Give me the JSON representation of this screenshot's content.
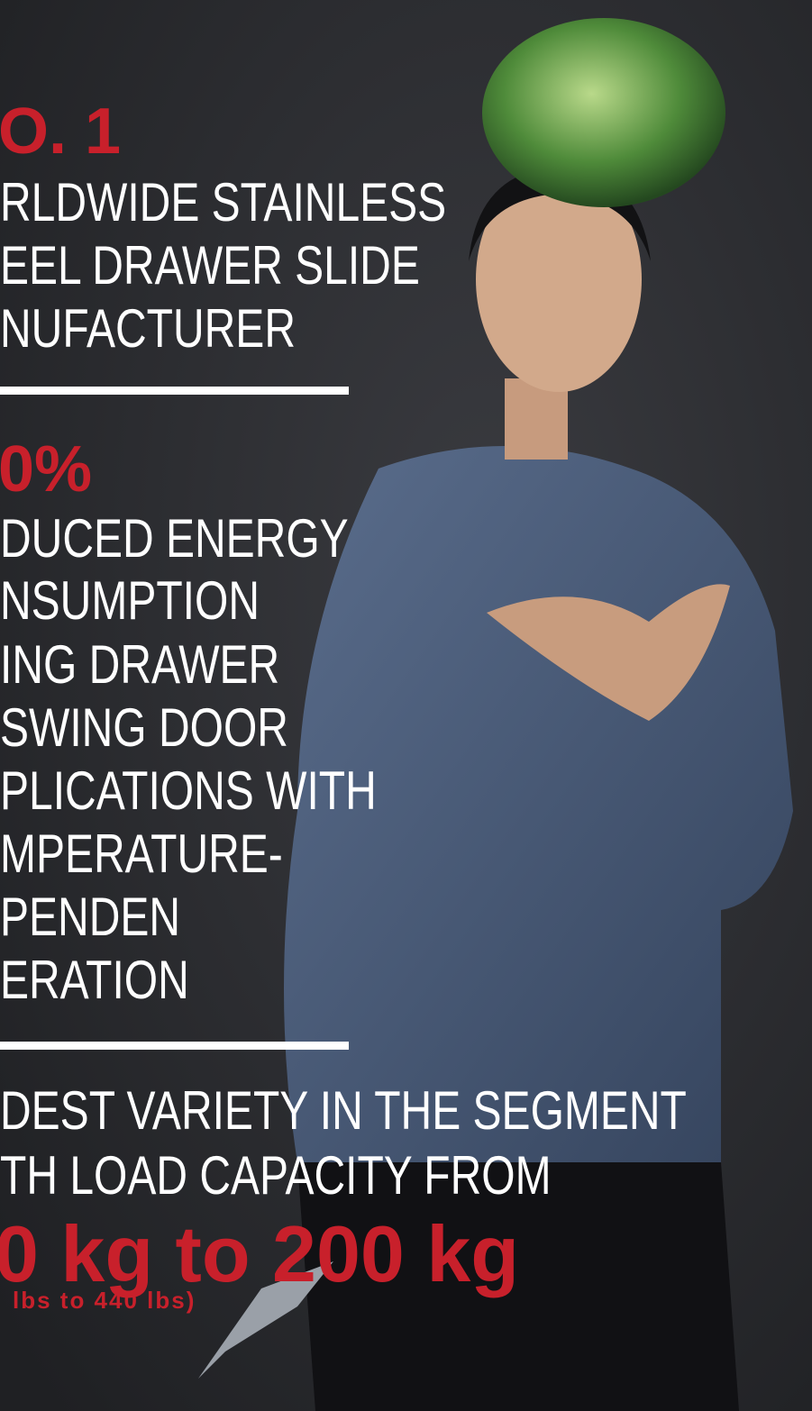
{
  "sections": [
    {
      "headline": "O. 1",
      "lines": [
        "RLDWIDE STAINLESS",
        "EEL DRAWER SLIDE",
        "NUFACTURER"
      ]
    },
    {
      "headline": "0%",
      "lines": [
        "DUCED ENERGY",
        "NSUMPTION",
        "ING DRAWER",
        " SWING DOOR",
        "PLICATIONS WITH",
        "MPERATURE-",
        "PENDEN",
        "ERATION"
      ]
    },
    {
      "lines": [
        "DEST VARIETY IN THE SEGMENT",
        "TH LOAD CAPACITY FROM"
      ],
      "highlight": "0 kg to 200 kg",
      "subhighlight": "lbs to 440 lbs)"
    }
  ]
}
